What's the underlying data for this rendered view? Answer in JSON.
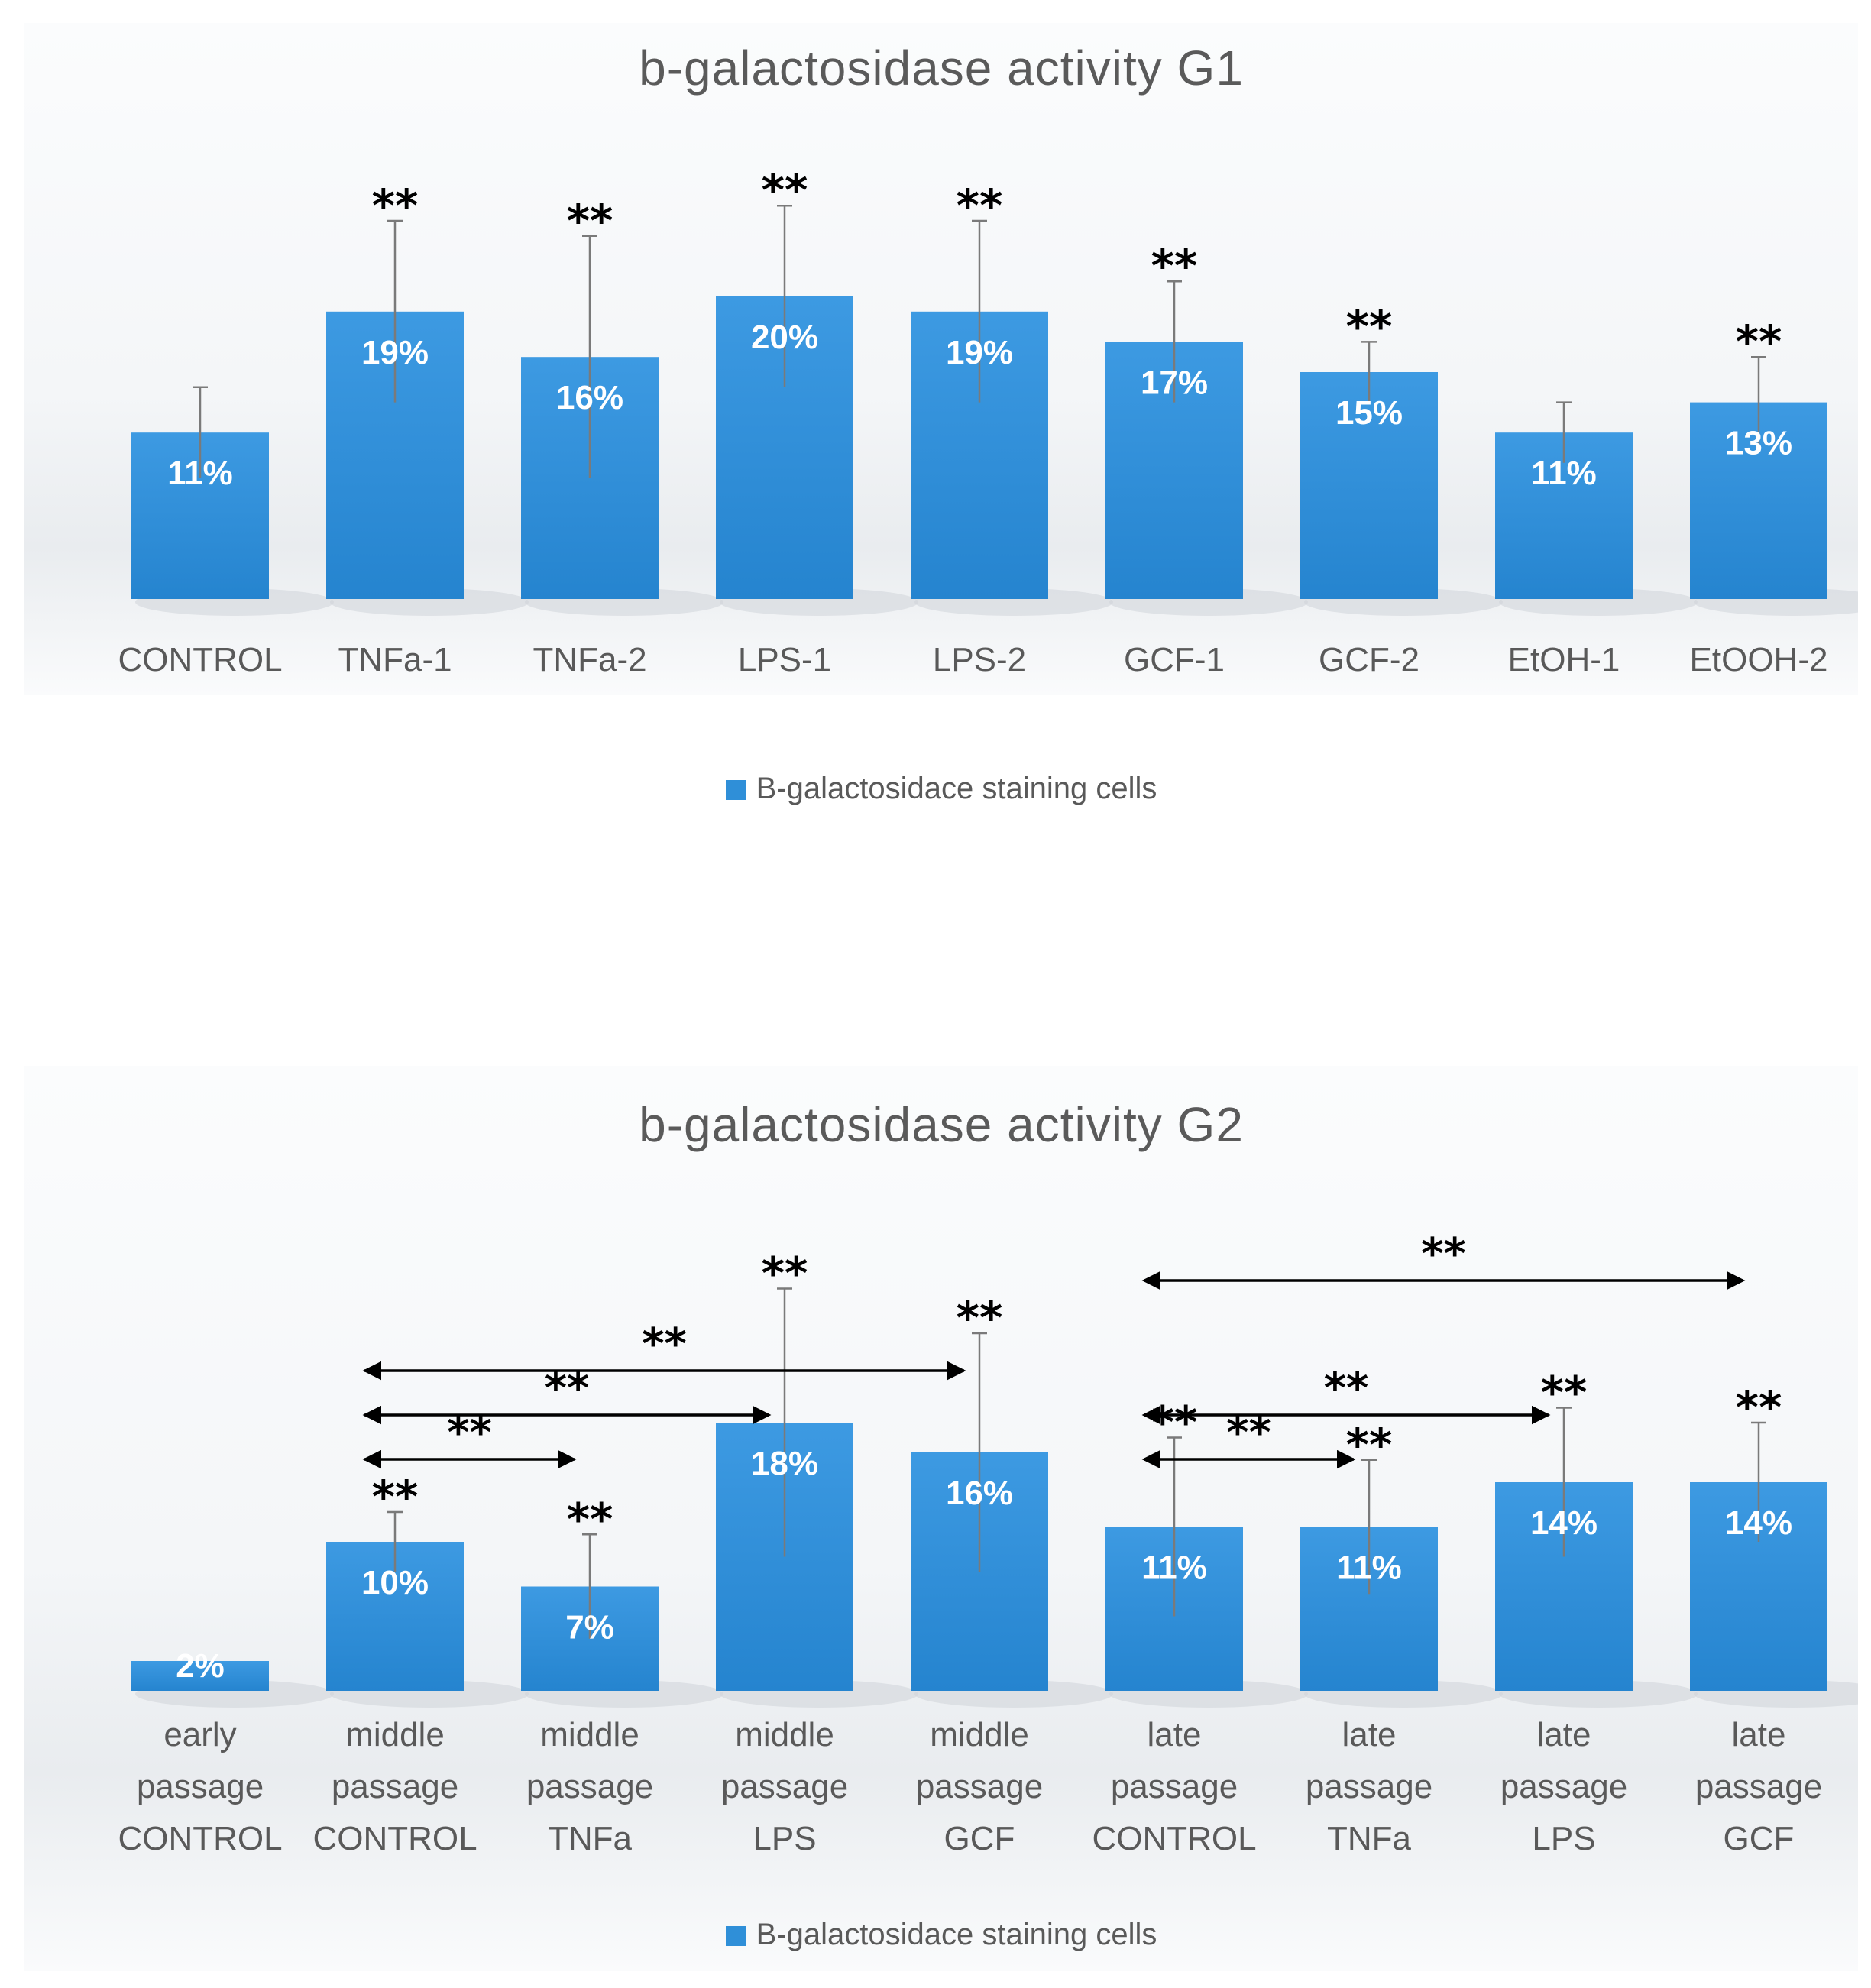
{
  "chart_data": [
    {
      "id": "g1",
      "type": "bar",
      "title": "b-galactosidase activity G1",
      "categories": [
        [
          "CONTROL"
        ],
        [
          "TNFa-1"
        ],
        [
          "TNFa-2"
        ],
        [
          "LPS-1"
        ],
        [
          "LPS-2"
        ],
        [
          "GCF-1"
        ],
        [
          "GCF-2"
        ],
        [
          "EtOH-1"
        ],
        [
          "EtOOH-2"
        ]
      ],
      "series": [
        {
          "name": "B-galactosidace staining cells",
          "values": [
            11,
            19,
            16,
            20,
            19,
            17,
            15,
            11,
            13
          ]
        }
      ],
      "data_labels": [
        "11%",
        "19%",
        "16%",
        "20%",
        "19%",
        "17%",
        "15%",
        "11%",
        "13%"
      ],
      "error": [
        3,
        6,
        8,
        6,
        6,
        4,
        2,
        2,
        3
      ],
      "significance": [
        "",
        "**",
        "**",
        "**",
        "**",
        "**",
        "**",
        "",
        "**"
      ],
      "brackets": [],
      "ylim": [
        0,
        30
      ],
      "xlabel": "",
      "ylabel": "",
      "legend": "bottom-center",
      "grid": false,
      "color": "#2f8fd8"
    },
    {
      "id": "g2",
      "type": "bar",
      "title": "b-galactosidase activity G2",
      "categories": [
        [
          "early",
          "passage",
          "CONTROL"
        ],
        [
          "middle",
          "passage",
          "CONTROL"
        ],
        [
          "middle",
          "passage",
          "TNFa"
        ],
        [
          "middle",
          "passage",
          "LPS"
        ],
        [
          "middle",
          "passage",
          "GCF"
        ],
        [
          "late",
          "passage",
          "CONTROL"
        ],
        [
          "late",
          "passage",
          "TNFa"
        ],
        [
          "late",
          "passage",
          "LPS"
        ],
        [
          "late",
          "passage",
          "GCF"
        ]
      ],
      "series": [
        {
          "name": "B-galactosidace staining cells",
          "values": [
            2,
            10,
            7,
            18,
            16,
            11,
            11,
            14,
            14
          ]
        }
      ],
      "data_labels": [
        "2%",
        "10%",
        "7%",
        "18%",
        "16%",
        "11%",
        "11%",
        "14%",
        "14%"
      ],
      "error": [
        0,
        2,
        3.5,
        9,
        8,
        6,
        4.5,
        5,
        4
      ],
      "significance": [
        "",
        "**",
        "**",
        "**",
        "**",
        "**",
        "**",
        "**",
        "**"
      ],
      "brackets": [
        {
          "from": 1,
          "to": 2,
          "label": "**",
          "level": 0
        },
        {
          "from": 1,
          "to": 3,
          "label": "**",
          "level": 1
        },
        {
          "from": 1,
          "to": 4,
          "label": "**",
          "level": 2
        },
        {
          "from": 5,
          "to": 6,
          "label": "**",
          "level": 0
        },
        {
          "from": 5,
          "to": 7,
          "label": "**",
          "level": 1
        },
        {
          "from": 5,
          "to": 8,
          "label": "**",
          "level": 3
        }
      ],
      "ylim": [
        0,
        30
      ],
      "xlabel": "",
      "ylabel": "",
      "legend": "bottom-center",
      "grid": false,
      "color": "#2f8fd8"
    }
  ]
}
